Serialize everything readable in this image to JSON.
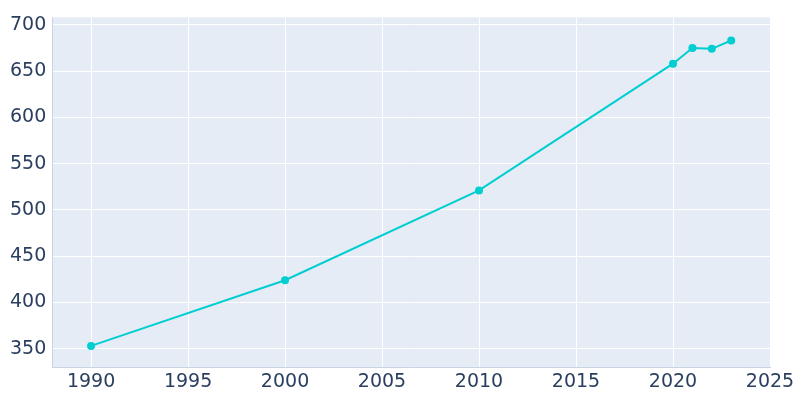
{
  "chart_data": {
    "type": "line",
    "x": [
      1990,
      2000,
      2010,
      2020,
      2021,
      2022,
      2023
    ],
    "values": [
      353,
      424,
      521,
      658,
      675,
      674,
      683
    ],
    "color": "#00ced1",
    "marker": "circle",
    "xlim": [
      1988,
      2025
    ],
    "xticks": [
      1990,
      1995,
      2000,
      2005,
      2010,
      2015,
      2020,
      2025
    ],
    "ylim": [
      330,
      708
    ],
    "yticks": [
      350,
      400,
      450,
      500,
      550,
      600,
      650,
      700
    ],
    "grid": true
  }
}
